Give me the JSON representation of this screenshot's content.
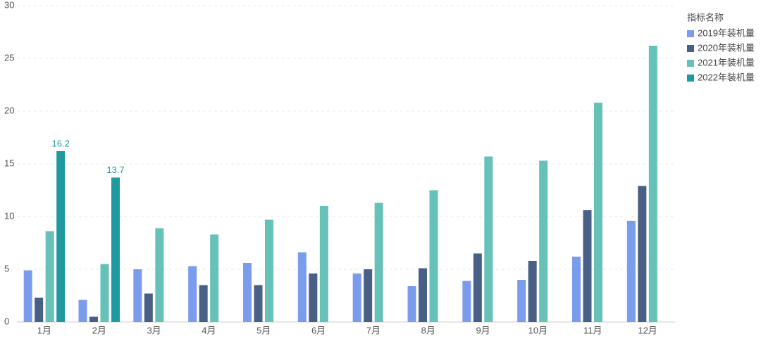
{
  "chart_data": {
    "type": "bar",
    "categories": [
      "1月",
      "2月",
      "3月",
      "4月",
      "5月",
      "6月",
      "7月",
      "8月",
      "9月",
      "10月",
      "11月",
      "12月"
    ],
    "legend_title": "指标名称",
    "legend": "top-right",
    "grid": true,
    "ylim": [
      0,
      30
    ],
    "yticks": [
      0,
      5,
      10,
      15,
      20,
      25,
      30
    ],
    "series": [
      {
        "name": "2019年装机量",
        "color": "#7b9bed",
        "values": [
          4.9,
          2.1,
          5.0,
          5.3,
          5.6,
          6.6,
          4.6,
          3.4,
          3.9,
          4.0,
          6.2,
          9.6
        ]
      },
      {
        "name": "2020年装机量",
        "color": "#4a5f85",
        "values": [
          2.3,
          0.5,
          2.7,
          3.5,
          3.5,
          4.6,
          5.0,
          5.1,
          6.5,
          5.8,
          10.6,
          12.9
        ]
      },
      {
        "name": "2021年装机量",
        "color": "#66c2b8",
        "values": [
          8.6,
          5.5,
          8.9,
          8.3,
          9.7,
          11.0,
          11.3,
          12.5,
          15.7,
          15.3,
          20.8,
          26.2
        ]
      },
      {
        "name": "2022年装机量",
        "color": "#1f9aa0",
        "values": [
          16.2,
          13.7,
          null,
          null,
          null,
          null,
          null,
          null,
          null,
          null,
          null,
          null
        ],
        "value_labels": [
          "16.2",
          "13.7",
          null,
          null,
          null,
          null,
          null,
          null,
          null,
          null,
          null,
          null
        ]
      }
    ]
  }
}
